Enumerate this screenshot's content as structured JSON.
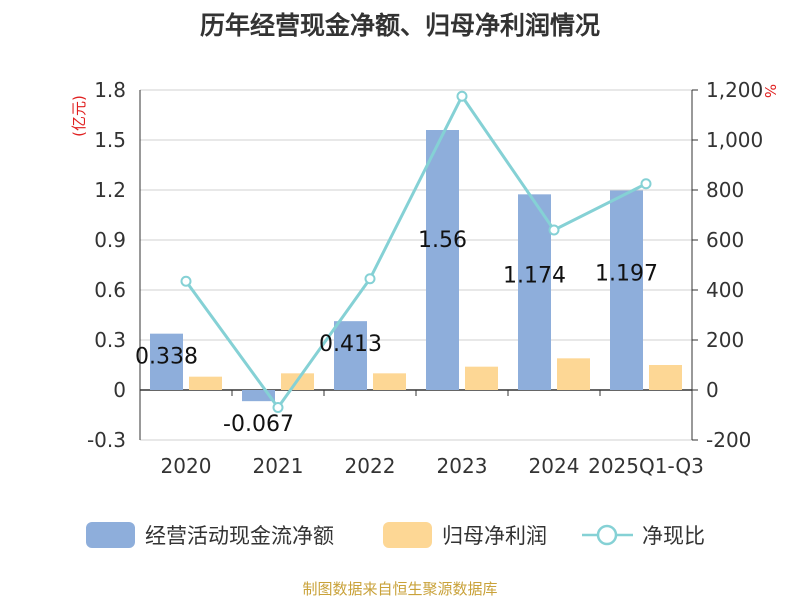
{
  "chart_data": {
    "type": "bar",
    "title": "历年经营现金净额、归母净利润情况",
    "left_unit": "(亿元)",
    "right_unit": "%",
    "categories": [
      "2020",
      "2021",
      "2022",
      "2023",
      "2024",
      "2025Q1-Q3"
    ],
    "ylim_left": [
      -0.3,
      1.8
    ],
    "yticks_left": [
      "-0.3",
      "0",
      "0.3",
      "0.6",
      "0.9",
      "1.2",
      "1.5",
      "1.8"
    ],
    "ylim_right": [
      -200,
      1200
    ],
    "yticks_right": [
      "-200",
      "0",
      "200",
      "400",
      "600",
      "800",
      "1,000",
      "1,200"
    ],
    "series": [
      {
        "name": "经营活动现金流净额",
        "type": "bar",
        "axis": "left",
        "color": "#8eaedb",
        "values": [
          0.338,
          -0.067,
          0.413,
          1.56,
          1.174,
          1.197
        ],
        "labels": [
          "0.338",
          "-0.067",
          "0.413",
          "1.56",
          "1.174",
          "1.197"
        ]
      },
      {
        "name": "归母净利润",
        "type": "bar",
        "axis": "left",
        "color": "#fdd795",
        "values": [
          0.08,
          0.1,
          0.1,
          0.14,
          0.19,
          0.15
        ]
      },
      {
        "name": "净现比",
        "type": "line",
        "axis": "right",
        "color": "#85d1d5",
        "values": [
          435,
          -70,
          445,
          1175,
          640,
          825
        ]
      }
    ],
    "grid": true,
    "legend_position": "bottom"
  },
  "footer": {
    "source": "制图数据来自恒生聚源数据库"
  }
}
